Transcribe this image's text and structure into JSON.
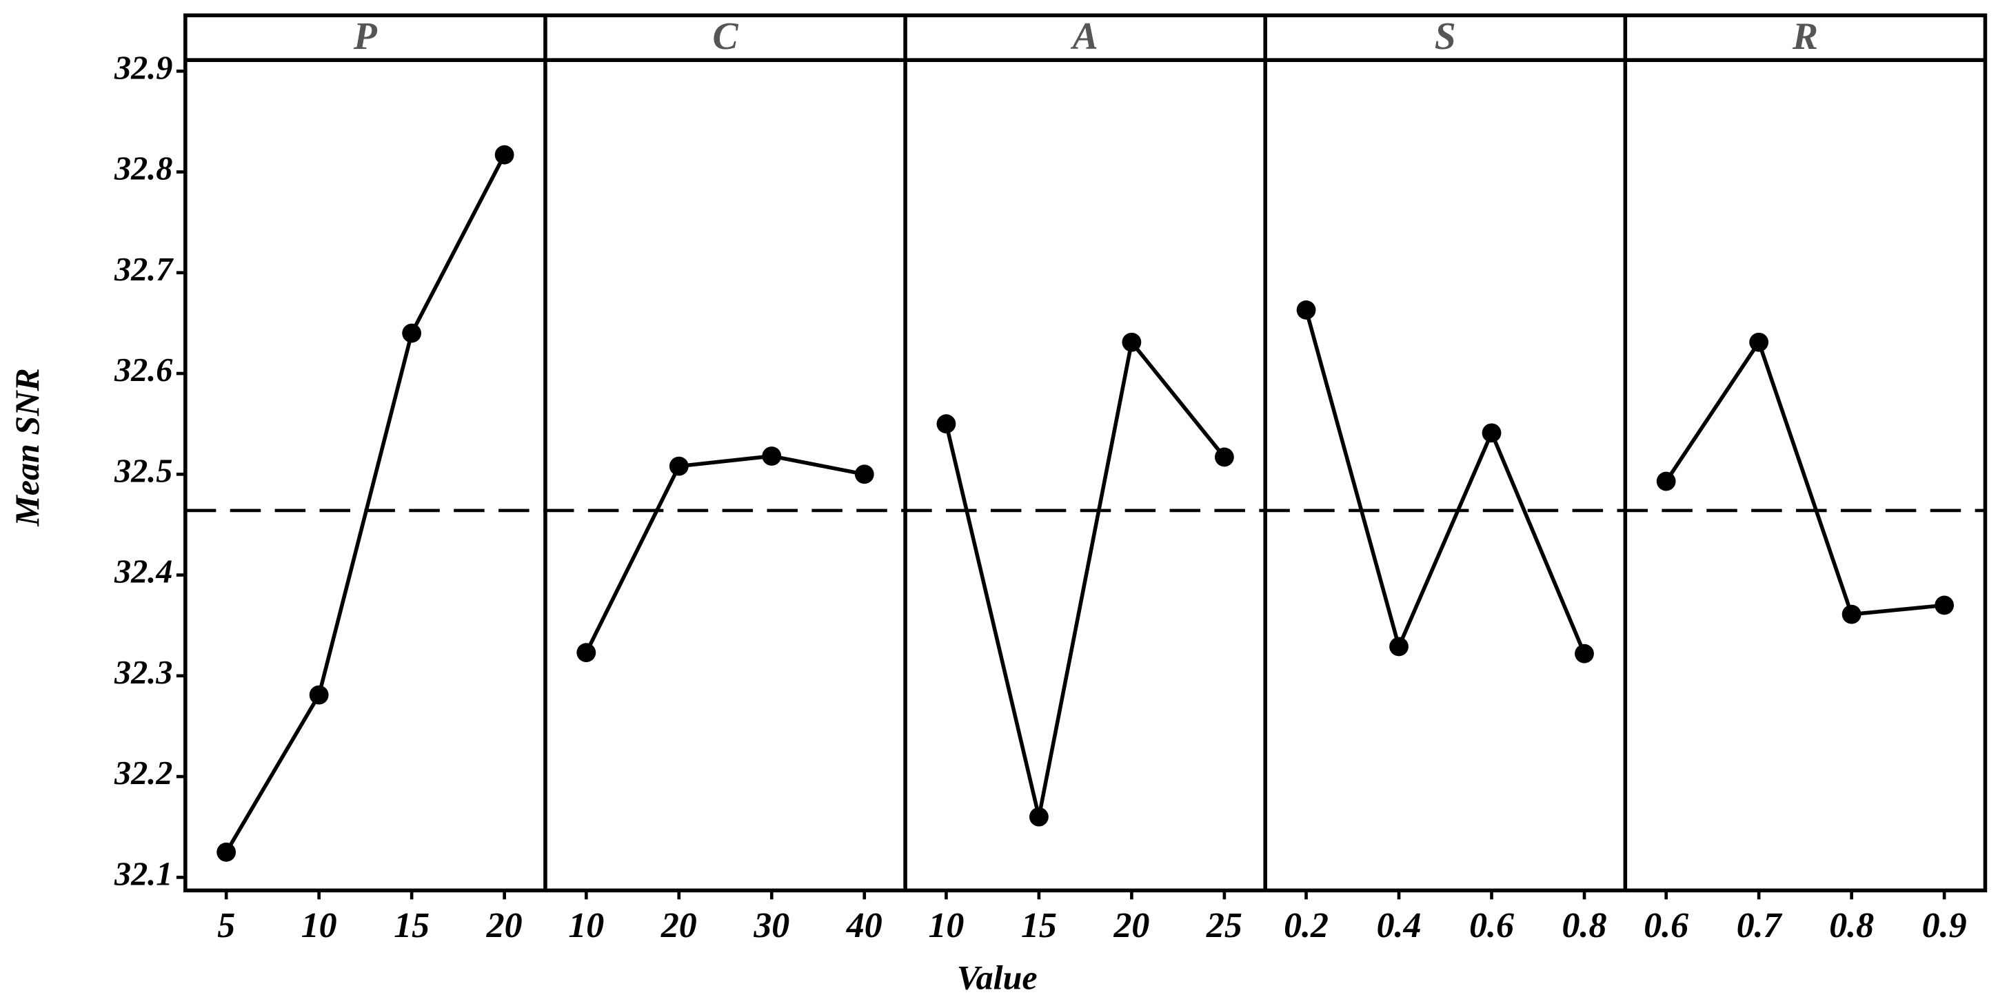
{
  "chart_data": {
    "type": "line",
    "y_label": "Mean SNR",
    "x_label": "Value",
    "ylim": [
      32.087,
      32.911
    ],
    "yticks": [
      32.1,
      32.2,
      32.3,
      32.4,
      32.5,
      32.6,
      32.7,
      32.8,
      32.9
    ],
    "mean_line": 32.464,
    "color": "#000000",
    "panels": [
      {
        "title": "P",
        "categories": [
          "5",
          "10",
          "15",
          "20"
        ],
        "values": [
          32.125,
          32.281,
          32.64,
          32.817
        ]
      },
      {
        "title": "C",
        "categories": [
          "10",
          "20",
          "30",
          "40"
        ],
        "values": [
          32.323,
          32.508,
          32.518,
          32.5
        ]
      },
      {
        "title": "A",
        "categories": [
          "10",
          "15",
          "20",
          "25"
        ],
        "values": [
          32.55,
          32.16,
          32.631,
          32.517
        ]
      },
      {
        "title": "S",
        "categories": [
          "0.2",
          "0.4",
          "0.6",
          "0.8"
        ],
        "values": [
          32.663,
          32.329,
          32.541,
          32.322
        ]
      },
      {
        "title": "R",
        "categories": [
          "0.6",
          "0.7",
          "0.8",
          "0.9"
        ],
        "values": [
          32.493,
          32.631,
          32.361,
          32.37
        ]
      }
    ]
  }
}
